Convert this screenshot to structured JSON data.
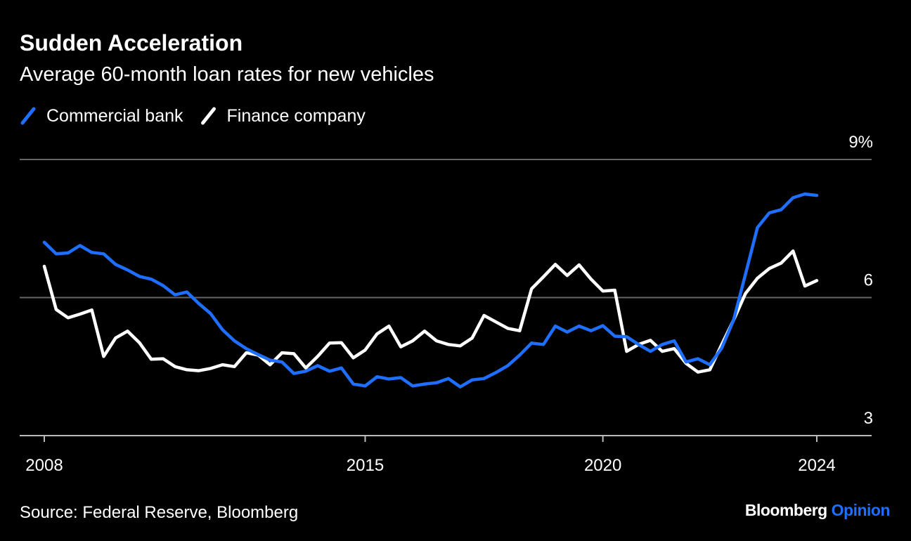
{
  "chart_data": {
    "type": "line",
    "title": "Sudden Acceleration",
    "subtitle": "Average 60-month loan rates for new vehicles",
    "source": "Source: Federal Reserve, Bloomberg",
    "brand": {
      "name": "Bloomberg",
      "suffix": "Opinion"
    },
    "categories": [
      "2008",
      null,
      null,
      null,
      null,
      null,
      null,
      null,
      null,
      null,
      null,
      null,
      null,
      null,
      null,
      null,
      null,
      null,
      null,
      null,
      null,
      null,
      null,
      null,
      null,
      null,
      null,
      "2015",
      null,
      null,
      null,
      null,
      null,
      null,
      null,
      null,
      null,
      null,
      null,
      null,
      null,
      null,
      null,
      null,
      null,
      null,
      null,
      "2020",
      null,
      null,
      null,
      null,
      null,
      null,
      null,
      null,
      null,
      null,
      null,
      null,
      null,
      null,
      null,
      null,
      null,
      "2024"
    ],
    "series": [
      {
        "name": "Commercial bank",
        "color": "#1f6fff",
        "values": [
          7.2,
          6.95,
          6.97,
          7.13,
          6.98,
          6.95,
          6.72,
          6.6,
          6.46,
          6.4,
          6.26,
          6.06,
          6.12,
          5.87,
          5.65,
          5.3,
          5.06,
          4.89,
          4.76,
          4.64,
          4.6,
          4.35,
          4.4,
          4.52,
          4.4,
          4.47,
          4.12,
          4.08,
          4.28,
          4.23,
          4.26,
          4.08,
          4.12,
          4.15,
          4.24,
          4.06,
          4.21,
          4.24,
          4.37,
          4.52,
          4.75,
          5.01,
          4.98,
          5.38,
          5.25,
          5.38,
          5.28,
          5.39,
          5.16,
          5.15,
          4.98,
          4.83,
          4.98,
          5.06,
          4.6,
          4.67,
          4.54,
          4.9,
          5.51,
          6.51,
          7.52,
          7.84,
          7.91,
          8.17,
          8.25,
          8.22
        ]
      },
      {
        "name": "Finance company",
        "color": "#ffffff",
        "values": [
          6.68,
          5.74,
          5.56,
          5.64,
          5.73,
          4.72,
          5.12,
          5.27,
          5.02,
          4.66,
          4.67,
          4.5,
          4.43,
          4.41,
          4.46,
          4.54,
          4.5,
          4.8,
          4.75,
          4.54,
          4.8,
          4.78,
          4.47,
          4.72,
          5.01,
          5.02,
          4.69,
          4.86,
          5.21,
          5.38,
          4.93,
          5.06,
          5.27,
          5.06,
          4.98,
          4.95,
          5.12,
          5.61,
          5.47,
          5.33,
          5.28,
          6.19,
          6.45,
          6.72,
          6.48,
          6.71,
          6.4,
          6.14,
          6.16,
          4.83,
          4.98,
          5.07,
          4.83,
          4.89,
          4.57,
          4.38,
          4.43,
          4.98,
          5.51,
          6.09,
          6.42,
          6.63,
          6.75,
          7.01,
          6.25,
          6.37
        ]
      }
    ],
    "ylim": [
      3,
      9
    ],
    "yticks": [
      3,
      6,
      {
        "value": 9,
        "label": "9%"
      }
    ],
    "grid": true
  }
}
